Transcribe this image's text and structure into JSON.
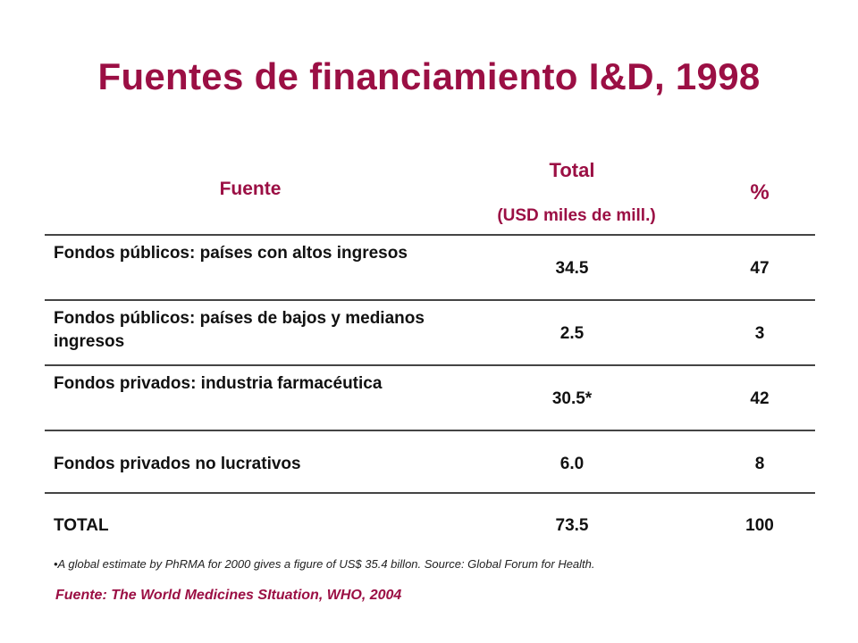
{
  "title": "Fuentes de financiamiento I&D, 1998",
  "table": {
    "headers": {
      "fuente": "Fuente",
      "total": "Total",
      "total_units": "(USD miles de mill.)",
      "percent": "%"
    },
    "rows": [
      {
        "source": "Fondos públicos: países con altos ingresos",
        "total": "34.5",
        "percent": "47"
      },
      {
        "source": "Fondos públicos: países de bajos y medianos ingresos",
        "total": "2.5",
        "percent": "3"
      },
      {
        "source": "Fondos privados: industria farmacéutica",
        "total": "30.5*",
        "percent": "42"
      },
      {
        "source": "Fondos privados no lucrativos",
        "total": "6.0",
        "percent": "8"
      },
      {
        "source": "TOTAL",
        "total": "73.5",
        "percent": "100"
      }
    ]
  },
  "footnote": "•A global estimate by PhRMA for 2000 gives a figure of US$ 35.4 billon. Source: Global Forum for Health.",
  "source_line": "Fuente: The World Medicines SItuation, WHO, 2004",
  "colors": {
    "accent": "#9B0F44"
  }
}
